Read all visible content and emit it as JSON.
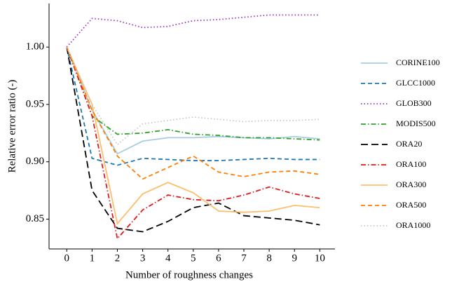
{
  "chart_data": {
    "type": "line",
    "xlabel": "Number of roughness changes",
    "ylabel": "Relative error ratio (-)",
    "x": [
      0,
      1,
      2,
      3,
      4,
      5,
      6,
      7,
      8,
      9,
      10
    ],
    "xlim": [
      -0.7,
      10.6
    ],
    "xticks": [
      0,
      1,
      2,
      3,
      4,
      5,
      6,
      7,
      8,
      9,
      10
    ],
    "ylim": [
      0.824,
      1.038
    ],
    "yticks": [
      0.85,
      {
        "value": 0.9,
        "label": "0.90"
      },
      0.95,
      {
        "value": 1,
        "label": "1.00"
      }
    ],
    "legend": "right",
    "series": [
      {
        "name": "CORINE100",
        "color": "#a6cee3",
        "style": "solid",
        "values": [
          1.0,
          0.945,
          0.907,
          0.918,
          0.921,
          0.921,
          0.922,
          0.921,
          0.92,
          0.922,
          0.92
        ]
      },
      {
        "name": "GLCC1000",
        "color": "#1f78b4",
        "style": "dashed",
        "values": [
          1.0,
          0.903,
          0.897,
          0.903,
          0.902,
          0.901,
          0.901,
          0.902,
          0.903,
          0.902,
          0.902
        ]
      },
      {
        "name": "GLOB300",
        "color": "#9933cc",
        "style": "dotted",
        "values": [
          1.0,
          1.025,
          1.023,
          1.017,
          1.018,
          1.023,
          1.024,
          1.026,
          1.028,
          1.028,
          1.028
        ]
      },
      {
        "name": "MODIS500",
        "color": "#33a02c",
        "style": "dashdot",
        "values": [
          1.0,
          0.94,
          0.924,
          0.925,
          0.928,
          0.924,
          0.923,
          0.921,
          0.921,
          0.92,
          0.919
        ]
      },
      {
        "name": "ORA20",
        "color": "#000000",
        "style": "longdash",
        "values": [
          1.0,
          0.875,
          0.842,
          0.839,
          0.848,
          0.86,
          0.864,
          0.853,
          0.851,
          0.849,
          0.845
        ]
      },
      {
        "name": "ORA100",
        "color": "#e31a1c",
        "style": "dashdot",
        "values": [
          1.0,
          0.94,
          0.833,
          0.858,
          0.871,
          0.867,
          0.866,
          0.871,
          0.878,
          0.872,
          0.868
        ]
      },
      {
        "name": "ORA300",
        "color": "#fdbf6f",
        "style": "solid",
        "values": [
          1.0,
          0.95,
          0.846,
          0.872,
          0.882,
          0.873,
          0.857,
          0.856,
          0.857,
          0.862,
          0.86
        ]
      },
      {
        "name": "ORA500",
        "color": "#ff7f00",
        "style": "dashed",
        "values": [
          1.0,
          0.945,
          0.905,
          0.885,
          0.895,
          0.905,
          0.891,
          0.887,
          0.891,
          0.892,
          0.889
        ]
      },
      {
        "name": "ORA1000",
        "color": "#c8c8c8",
        "style": "dotted",
        "values": [
          1.0,
          0.95,
          0.915,
          0.933,
          0.936,
          0.939,
          0.937,
          0.935,
          0.936,
          0.936,
          0.937
        ]
      }
    ]
  }
}
